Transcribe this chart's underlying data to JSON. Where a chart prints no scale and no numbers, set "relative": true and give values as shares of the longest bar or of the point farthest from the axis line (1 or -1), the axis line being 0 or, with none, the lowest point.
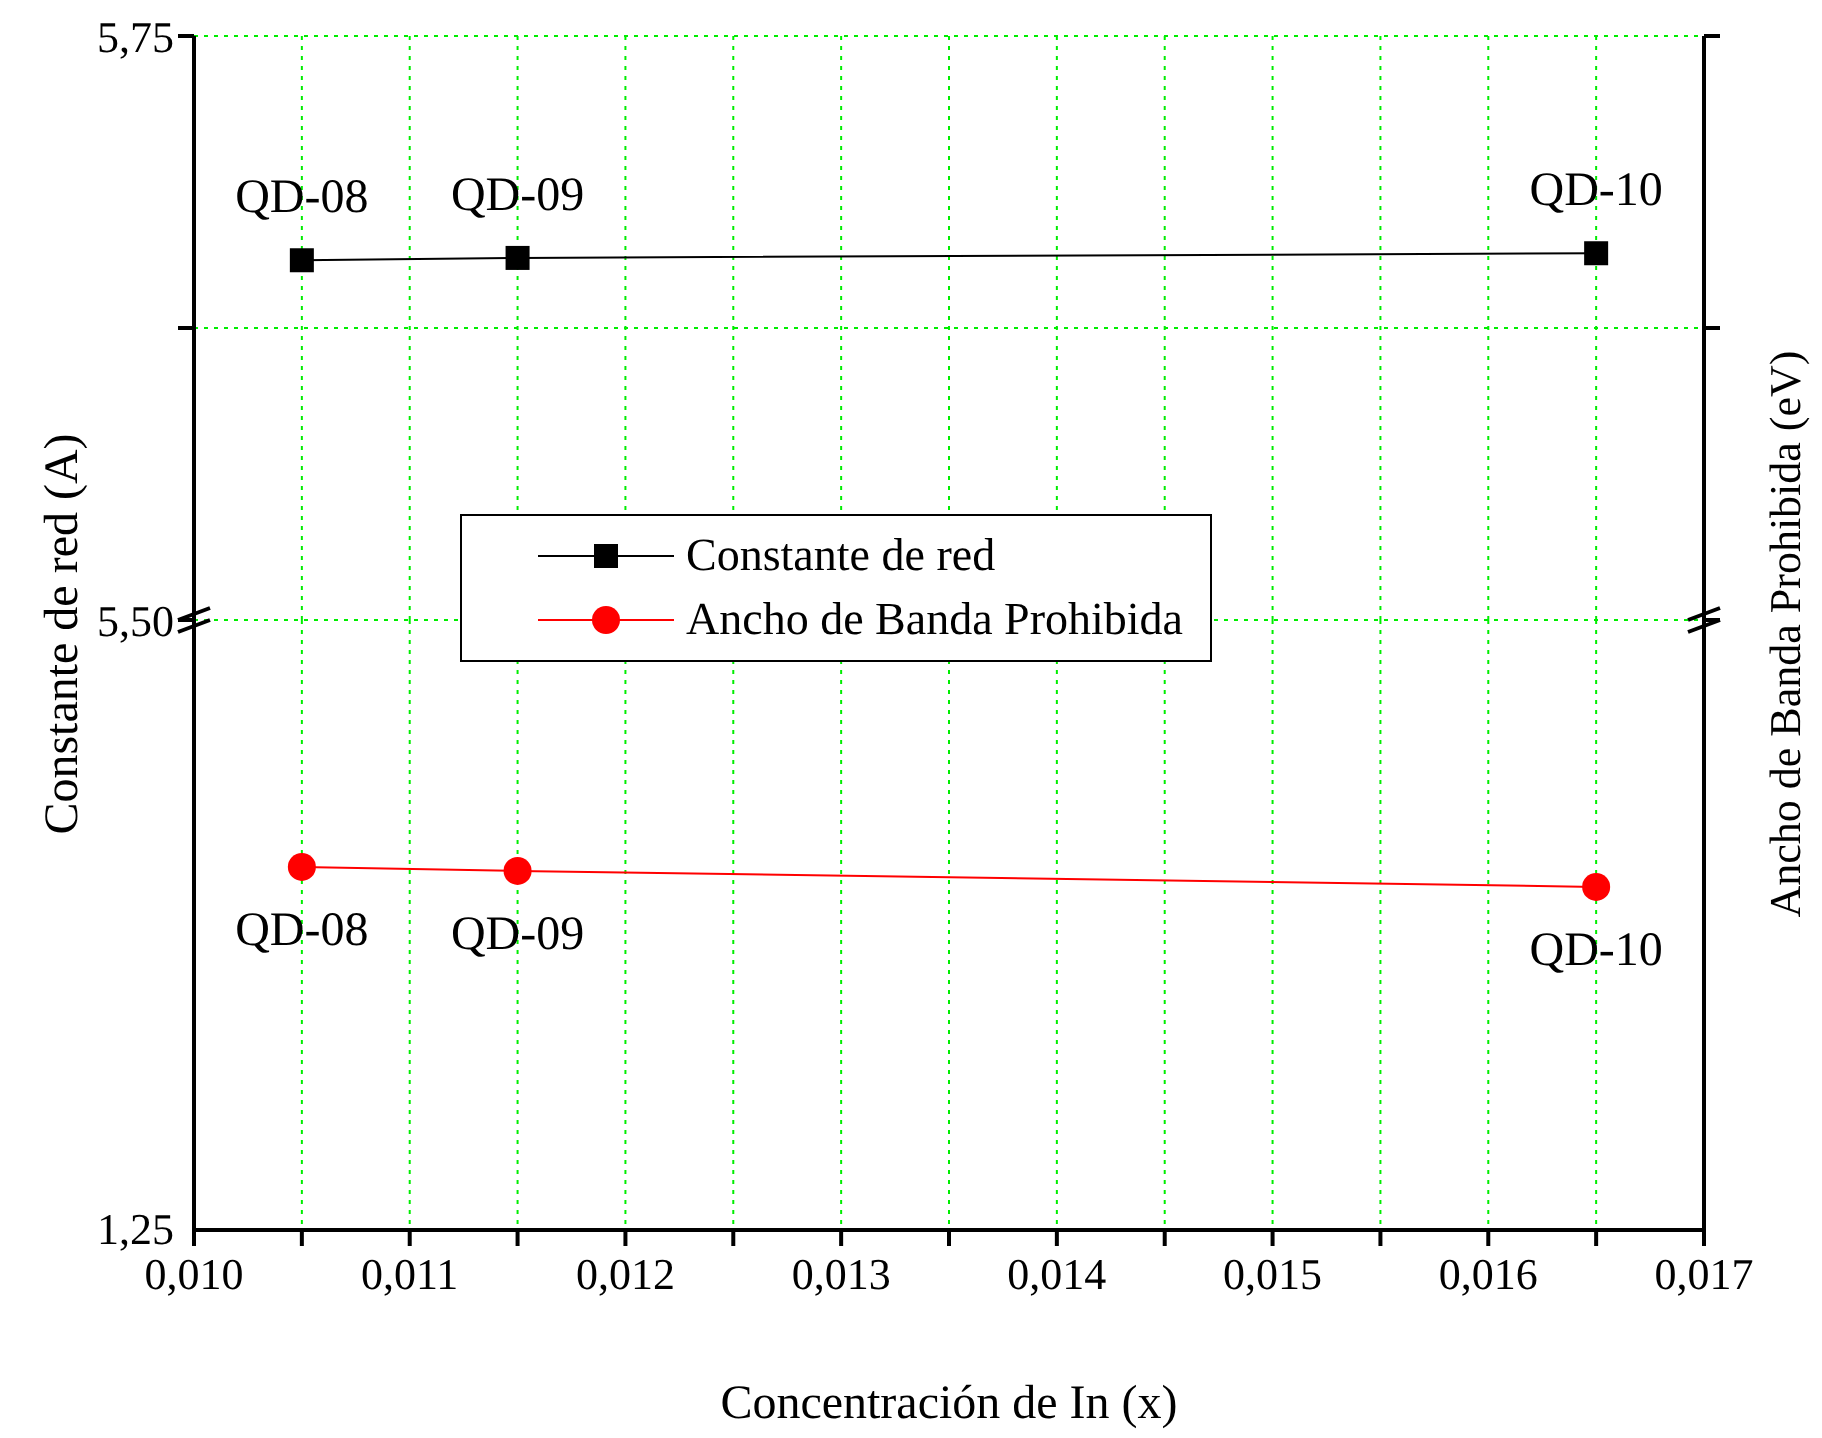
{
  "chart_data": [
    {
      "type": "line",
      "ylabel": "Constante de red (A)",
      "x": [
        0.0105,
        0.0115,
        0.0165
      ],
      "series": [
        {
          "name": "Constante de red",
          "color": "#000000",
          "values": [
            5.654,
            5.655,
            5.657
          ]
        }
      ],
      "xlim": [
        0.01,
        0.017
      ],
      "ylim": [
        5.5,
        5.75
      ],
      "yticks": [
        {
          "value": 5.5,
          "label": "5,50"
        },
        {
          "value": 5.625,
          "label": null
        },
        {
          "value": 5.75,
          "label": "5,75"
        }
      ],
      "xticks": [
        {
          "value": 0.01,
          "label": null
        },
        {
          "value": 0.0105,
          "label": null
        },
        {
          "value": 0.011,
          "label": null
        },
        {
          "value": 0.0115,
          "label": null
        },
        {
          "value": 0.012,
          "label": null
        },
        {
          "value": 0.0125,
          "label": null
        },
        {
          "value": 0.013,
          "label": null
        },
        {
          "value": 0.0135,
          "label": null
        },
        {
          "value": 0.014,
          "label": null
        },
        {
          "value": 0.0145,
          "label": null
        },
        {
          "value": 0.015,
          "label": null
        },
        {
          "value": 0.0155,
          "label": null
        },
        {
          "value": 0.016,
          "label": null
        },
        {
          "value": 0.0165,
          "label": null
        },
        {
          "value": 0.017,
          "label": null
        }
      ],
      "tick_labels": "y",
      "grid": true,
      "legend": "bottom left",
      "marker": "square",
      "line_style": "solid",
      "annotations": [
        {
          "text": "QD-08",
          "x": 0.0105,
          "y": 5.654
        },
        {
          "text": "QD-09",
          "x": 0.0115,
          "y": 5.655
        },
        {
          "text": "QD-10",
          "x": 0.0165,
          "y": 5.657
        }
      ]
    },
    {
      "type": "line",
      "xlabel": "Concentración de In (x)",
      "y2label": "Ancho de Banda Prohibida (eV)",
      "x": [
        0.0105,
        0.0115,
        0.0165
      ],
      "series": [
        {
          "name": "Ancho de Banda Prohibida",
          "color": "#ff0000",
          "values": [
            1,
            0.989,
            0.945
          ]
        }
      ],
      "relative": true,
      "xlim": [
        0.01,
        0.017
      ],
      "xticks": [
        {
          "value": 0.01,
          "label": "0,010"
        },
        {
          "value": 0.0105,
          "label": null
        },
        {
          "value": 0.011,
          "label": "0,011"
        },
        {
          "value": 0.0115,
          "label": null
        },
        {
          "value": 0.012,
          "label": "0,012"
        },
        {
          "value": 0.0125,
          "label": null
        },
        {
          "value": 0.013,
          "label": "0,013"
        },
        {
          "value": 0.0135,
          "label": null
        },
        {
          "value": 0.014,
          "label": "0,014"
        },
        {
          "value": 0.0145,
          "label": null
        },
        {
          "value": 0.015,
          "label": "0,015"
        },
        {
          "value": 0.0155,
          "label": null
        },
        {
          "value": 0.016,
          "label": "0,016"
        },
        {
          "value": 0.0165,
          "label": null
        },
        {
          "value": 0.017,
          "label": "0,017"
        }
      ],
      "grid": "x",
      "legend": "top left",
      "marker": "circle",
      "line_style": "solid",
      "annotations": [
        "1,25",
        {
          "text": "QD-08",
          "x": 0.0105,
          "y": 1
        },
        {
          "text": "QD-09",
          "x": 0.0115,
          "y": 0.989
        },
        {
          "text": "QD-10",
          "x": 0.0165,
          "y": 0.945
        }
      ]
    }
  ]
}
